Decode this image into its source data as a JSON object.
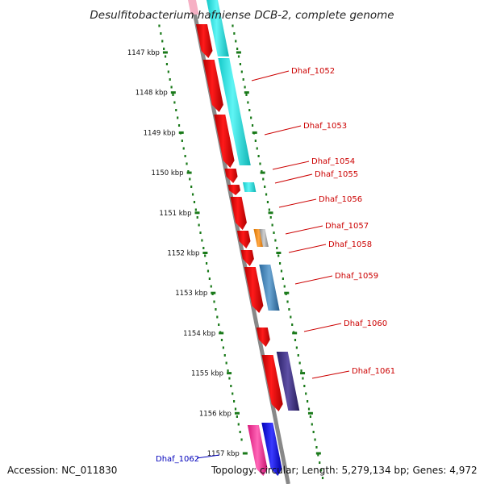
{
  "title": "Desulfitobacterium hafniense DCB-2, complete genome",
  "footer": {
    "accession": "Accession: NC_011830",
    "topology": "Topology: circular; Length: 5,279,134 bp; Genes: 4,972"
  },
  "ruler": {
    "labels": [
      "1147 kbp",
      "1148 kbp",
      "1149 kbp",
      "1150 kbp",
      "1151 kbp",
      "1152 kbp",
      "1153 kbp",
      "1154 kbp",
      "1155 kbp",
      "1156 kbp",
      "1157 kbp"
    ]
  },
  "colors": {
    "backbone": "#888888",
    "ruler": "#1a7a1a",
    "label_red": "#cc0000",
    "label_blue": "#0000bb"
  },
  "genes": [
    {
      "label": "Dhaf_1052",
      "label_color": "#cc0000"
    },
    {
      "label": "Dhaf_1053",
      "label_color": "#cc0000"
    },
    {
      "label": "Dhaf_1054",
      "label_color": "#cc0000"
    },
    {
      "label": "Dhaf_1055",
      "label_color": "#cc0000"
    },
    {
      "label": "Dhaf_1056",
      "label_color": "#cc0000"
    },
    {
      "label": "Dhaf_1057",
      "label_color": "#cc0000"
    },
    {
      "label": "Dhaf_1058",
      "label_color": "#cc0000"
    },
    {
      "label": "Dhaf_1059",
      "label_color": "#cc0000"
    },
    {
      "label": "Dhaf_1060",
      "label_color": "#cc0000"
    },
    {
      "label": "Dhaf_1061",
      "label_color": "#cc0000"
    },
    {
      "label": "Dhaf_1062",
      "label_color": "#0000bb"
    }
  ]
}
